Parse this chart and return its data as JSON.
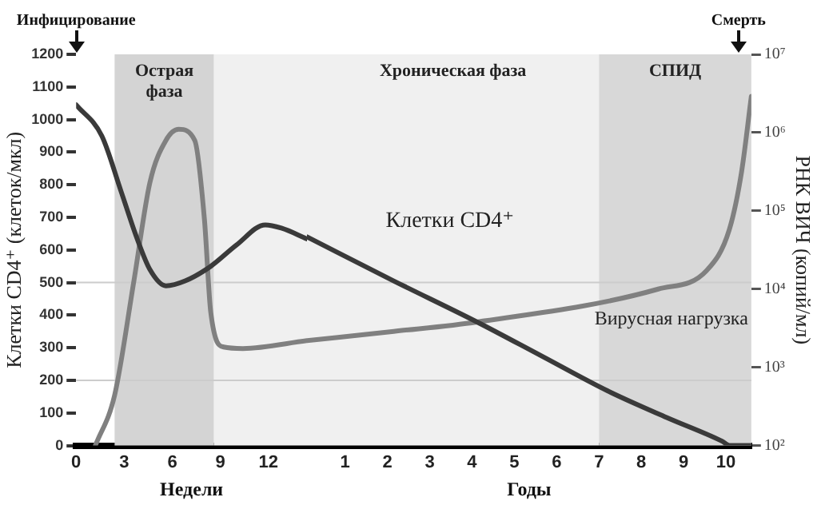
{
  "chart_data": [
    {
      "type": "line",
      "ylabel": "Клетки CD4⁺ (клеток/мкл)",
      "xlim": [
        0,
        14.4
      ],
      "xticks": [
        0,
        3,
        6,
        9,
        12
      ],
      "ylim": [
        0,
        1200
      ],
      "yticks": [
        0,
        100,
        200,
        300,
        400,
        500,
        600,
        700,
        800,
        900,
        1000,
        1100,
        1200
      ],
      "y2lim": [
        100,
        10000000
      ],
      "log": "y2",
      "grid": false,
      "legend": false,
      "marker": "none",
      "line_style": "solid",
      "tick_labels": "xy",
      "series": [
        {
          "color": "#3a3a3a",
          "x": [
            0,
            1.6,
            2.8,
            3.8,
            4.6,
            5.6,
            6.8,
            8.4,
            10,
            11.8,
            12.8,
            14.4
          ],
          "values": [
            1045,
            950,
            780,
            635,
            540,
            490,
            505,
            550,
            615,
            677,
            667,
            634
          ]
        },
        {
          "color": "#808080",
          "axis": "y2",
          "x": [
            1.2,
            2.4,
            3.6,
            4.6,
            5.6,
            6.4,
            7.4,
            8,
            8.4,
            9.2,
            10.4,
            14.4
          ],
          "values": [
            100,
            440,
            12600,
            229000,
            794000,
            1100000,
            794000,
            79000,
            5000,
            1820,
            1740,
            2190
          ]
        }
      ],
      "bands": [
        {
          "axis": "x",
          "from": 2.4,
          "to": 8.6,
          "label": "Острая фаза",
          "color": "#d4d4d4"
        },
        {
          "axis": "x",
          "from": 8.6,
          "to": 14.4,
          "color": "#f0f0f0"
        }
      ],
      "ref_lines": [
        {
          "axis": "y",
          "value": 500,
          "color": "#cccccc"
        },
        {
          "axis": "y",
          "value": 200,
          "color": "#cccccc"
        }
      ],
      "annotations": [
        "Инфицирование",
        "Недели"
      ]
    },
    {
      "type": "line",
      "y2label": "РНК ВИЧ (копий/мл)",
      "xlim": [
        0.1,
        10.6
      ],
      "xticks": [
        1,
        2,
        3,
        4,
        5,
        6,
        7,
        8,
        9,
        10
      ],
      "ylim": [
        0,
        1200
      ],
      "y2lim": [
        100,
        10000000
      ],
      "y2ticks": [
        {
          "value": 100,
          "label": "10²"
        },
        {
          "value": 1000,
          "label": "10³"
        },
        {
          "value": 10000,
          "label": "10⁴"
        },
        {
          "value": 100000,
          "label": "10⁵"
        },
        {
          "value": 1000000,
          "label": "10⁶"
        },
        {
          "value": 10000000,
          "label": "10⁷"
        }
      ],
      "log": "y2",
      "grid": false,
      "legend": false,
      "marker": "none",
      "line_style": "solid",
      "tick_labels": "xy2",
      "series": [
        {
          "name": "Клетки CD4⁺",
          "color": "#3a3a3a",
          "x": [
            0.1,
            2.15,
            4.12,
            5.64,
            7.2,
            8.6,
            9.9,
            10.1,
            10.6
          ],
          "values": [
            640,
            505,
            379,
            275,
            168,
            86,
            14,
            0,
            0
          ]
        },
        {
          "name": "Вирусная нагрузка",
          "color": "#808080",
          "axis": "y2",
          "x": [
            0.1,
            2.15,
            4.12,
            8.4,
            9.55,
            10.08,
            10.37,
            10.6
          ],
          "values": [
            2190,
            2880,
            3800,
            10000,
            17400,
            57500,
            316000,
            2900000
          ]
        }
      ],
      "bands": [
        {
          "axis": "x",
          "from": 0.1,
          "to": 7,
          "label": "Хроническая фаза",
          "color": "#f0f0f0"
        },
        {
          "axis": "x",
          "from": 7,
          "to": 10.6,
          "label": "СПИД",
          "color": "#d8d8d8"
        }
      ],
      "ref_lines": [
        {
          "axis": "y",
          "value": 500,
          "color": "#cccccc"
        },
        {
          "axis": "y",
          "value": 200,
          "color": "#cccccc"
        }
      ],
      "annotations": [
        "Смерть",
        "Годы"
      ]
    }
  ]
}
